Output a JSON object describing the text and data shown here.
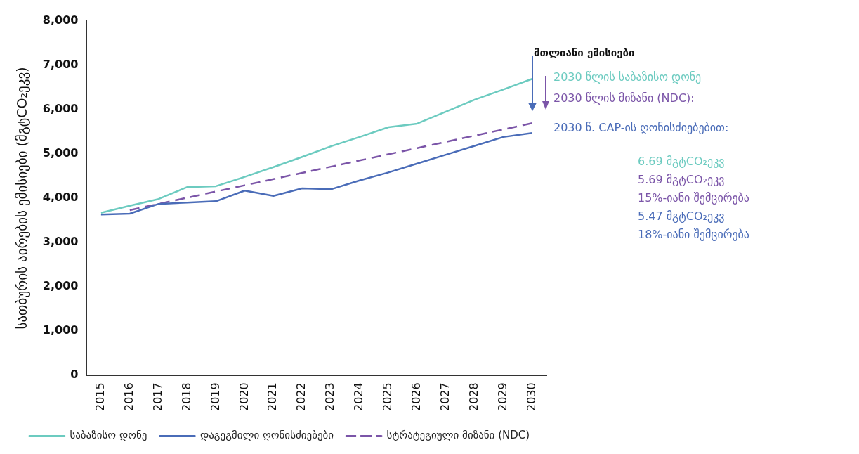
{
  "chart_data": {
    "type": "line",
    "ylabel": "სათბურის აირების ემისიები (მგტCO₂ეკვ)",
    "categories": [
      "2015",
      "2016",
      "2017",
      "2018",
      "2019",
      "2020",
      "2021",
      "2022",
      "2023",
      "2024",
      "2025",
      "2026",
      "2027",
      "2028",
      "2029",
      "2030"
    ],
    "ylim": [
      0,
      8000
    ],
    "yticks": [
      {
        "value": 0,
        "label": "0"
      },
      {
        "value": 1000,
        "label": "1,000"
      },
      {
        "value": 2000,
        "label": "2,000"
      },
      {
        "value": 3000,
        "label": "3,000"
      },
      {
        "value": 4000,
        "label": "4,000"
      },
      {
        "value": 5000,
        "label": "5,000"
      },
      {
        "value": 6000,
        "label": "6,000"
      },
      {
        "value": 7000,
        "label": "7,000"
      },
      {
        "value": 8000,
        "label": "8,000"
      }
    ],
    "grid": false,
    "legend": "bottom",
    "marker": "none",
    "series": [
      {
        "name": "საბაზისო დონე",
        "color": "#6ccbc0",
        "line_style": "solid",
        "values": [
          3670,
          3830,
          3980,
          4250,
          4270,
          4480,
          4700,
          4930,
          5170,
          5380,
          5600,
          5680,
          5950,
          6220,
          6450,
          6690
        ]
      },
      {
        "name": "დაგეგმილი ღონისძიებები",
        "color": "#4a6cb8",
        "line_style": "solid",
        "values": [
          3630,
          3650,
          3870,
          3900,
          3930,
          4170,
          4050,
          4220,
          4200,
          4400,
          4580,
          4780,
          4980,
          5180,
          5380,
          5470
        ]
      },
      {
        "name": "სტრატეგიული მიზანი (NDC)",
        "color": "#7b55a8",
        "line_style": "dashed",
        "values": [
          null,
          3730,
          3870,
          4010,
          4150,
          4290,
          4430,
          4570,
          4710,
          4850,
          4990,
          5130,
          5270,
          5410,
          5550,
          5690
        ]
      }
    ],
    "annotations": [
      "მთლიანი ემისიები",
      "2030 წლის საბაზისო დონე",
      "2030 წლის მიზანი (NDC):",
      "2030 წ. CAP-ის ღონისძიებებით:",
      "6.69 მგტCO₂ეკვ",
      "5.69 მგტCO₂ეკვ",
      "15%-იანი შემცირება",
      "5.47 მგტCO₂ეკვ",
      "18%-იანი შემცირება"
    ]
  }
}
